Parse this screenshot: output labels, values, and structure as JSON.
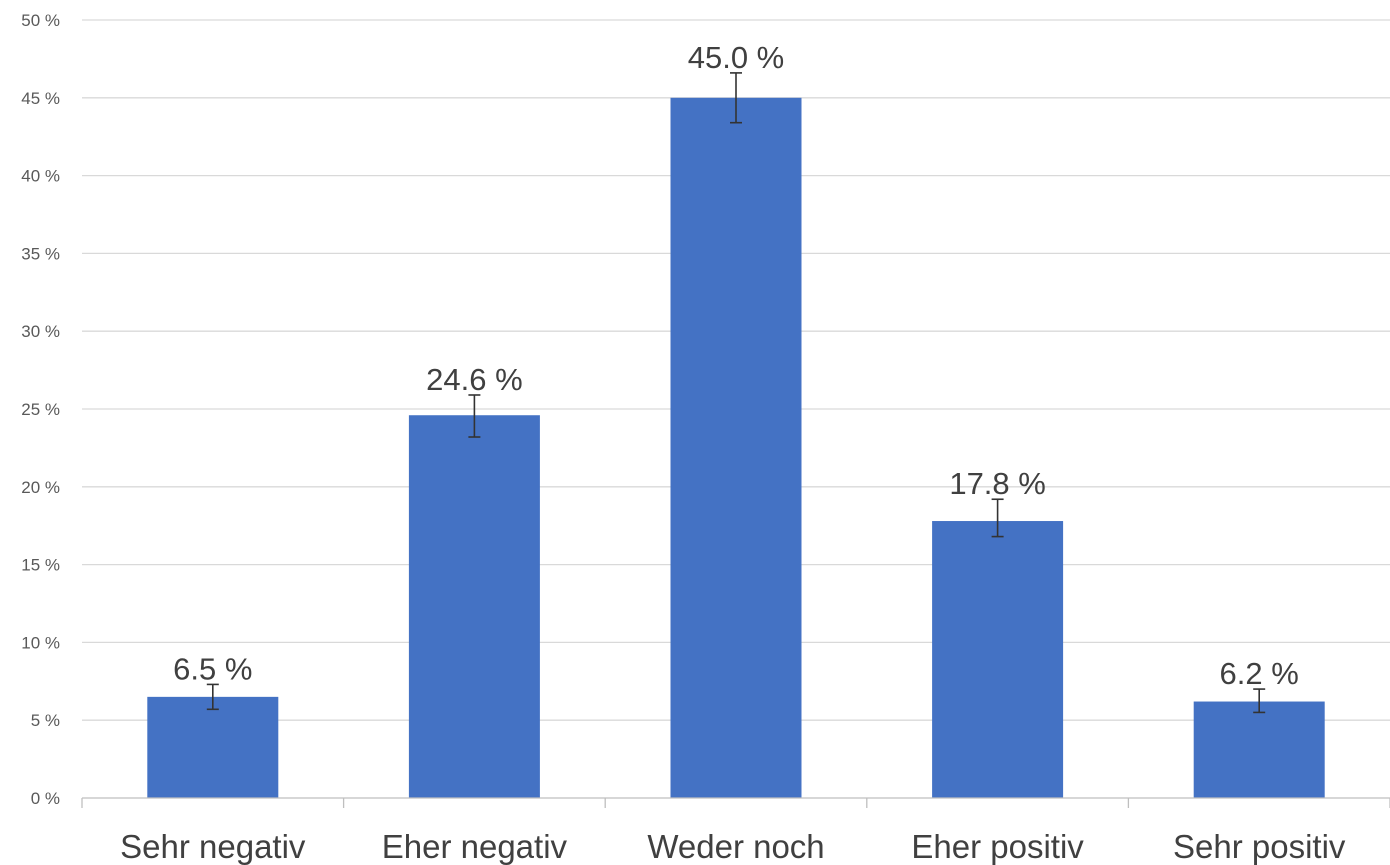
{
  "chart_data": {
    "type": "bar",
    "categories": [
      "Sehr negativ",
      "Eher negativ",
      "Weder noch",
      "Eher positiv",
      "Sehr positiv"
    ],
    "values": [
      6.5,
      24.6,
      45.0,
      17.8,
      6.2
    ],
    "value_labels": [
      "6.5 %",
      "24.6 %",
      "45.0 %",
      "17.8 %",
      "6.2 %"
    ],
    "error": [
      {
        "low": 5.7,
        "high": 7.3
      },
      {
        "low": 23.2,
        "high": 25.9
      },
      {
        "low": 43.4,
        "high": 46.6
      },
      {
        "low": 16.8,
        "high": 19.2
      },
      {
        "low": 5.5,
        "high": 7.0
      }
    ],
    "ylim": [
      0,
      50
    ],
    "yticks": [
      0,
      5,
      10,
      15,
      20,
      25,
      30,
      35,
      40,
      45,
      50
    ],
    "ytick_labels": [
      "0 %",
      "5 %",
      "10 %",
      "15 %",
      "20 %",
      "25 %",
      "30 %",
      "35 %",
      "40 %",
      "45 %",
      "50 %"
    ],
    "grid": true,
    "bar_color": "#4472C4",
    "title": "",
    "xlabel": "",
    "ylabel": ""
  }
}
